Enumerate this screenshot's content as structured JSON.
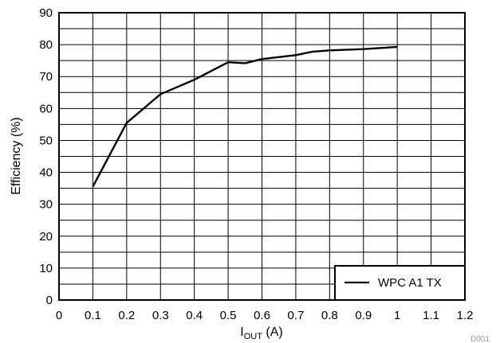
{
  "chart_data": {
    "type": "line",
    "title": "",
    "xlabel_main": "I",
    "xlabel_sub": "OUT",
    "xlabel_unit": " (A)",
    "ylabel": "Efficiency (%)",
    "xlim": [
      0,
      1.2
    ],
    "ylim": [
      0,
      90
    ],
    "x_major_ticks": [
      "0",
      "0.1",
      "0.2",
      "0.3",
      "0.4",
      "0.5",
      "0.6",
      "0.7",
      "0.8",
      "0.9",
      "1",
      "1.1",
      "1.2"
    ],
    "y_major_ticks": [
      "0",
      "10",
      "20",
      "30",
      "40",
      "50",
      "60",
      "70",
      "80",
      "90"
    ],
    "grid": true,
    "legend_position": "bottom-right",
    "series": [
      {
        "name": "WPC A1 TX",
        "color": "#000000",
        "x": [
          0.1,
          0.2,
          0.3,
          0.4,
          0.5,
          0.55,
          0.6,
          0.7,
          0.75,
          0.8,
          0.9,
          1.0
        ],
        "y": [
          35.5,
          55.5,
          64.5,
          69.0,
          74.5,
          74.2,
          75.5,
          76.7,
          77.8,
          78.2,
          78.6,
          79.3
        ]
      }
    ],
    "figure_id": "D001"
  }
}
